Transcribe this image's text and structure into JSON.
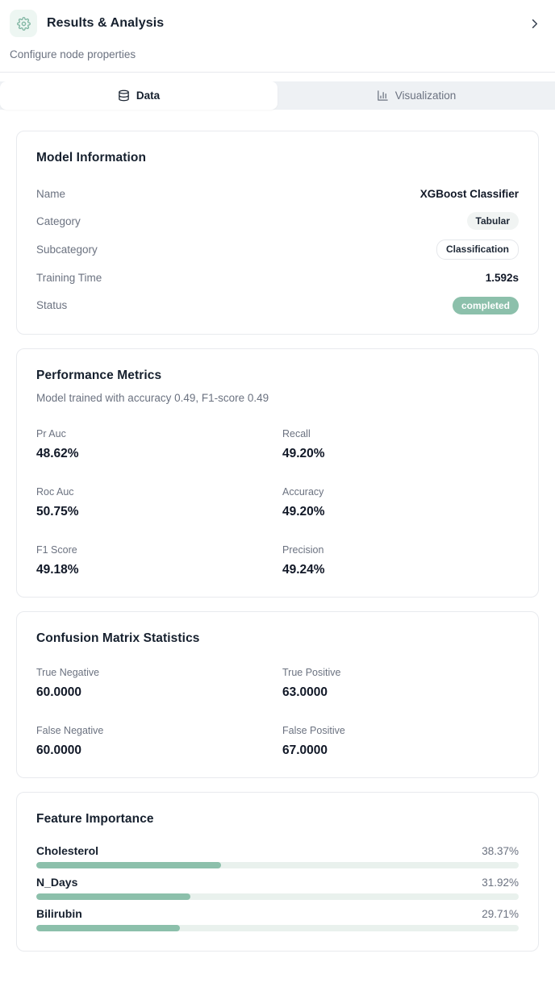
{
  "header": {
    "title": "Results & Analysis",
    "subtitle": "Configure node properties",
    "icons": [
      "gear-icon",
      "chevron-right-icon"
    ]
  },
  "tabs": [
    {
      "label": "Data",
      "icon": "database-icon",
      "active": true
    },
    {
      "label": "Visualization",
      "icon": "bar-chart-icon",
      "active": false
    }
  ],
  "model_info": {
    "title": "Model Information",
    "rows": [
      {
        "label": "Name",
        "value": "XGBoost Classifier",
        "type": "text"
      },
      {
        "label": "Category",
        "value": "Tabular",
        "type": "badge-gray"
      },
      {
        "label": "Subcategory",
        "value": "Classification",
        "type": "badge-outline"
      },
      {
        "label": "Training Time",
        "value": "1.592s",
        "type": "text"
      },
      {
        "label": "Status",
        "value": "completed",
        "type": "badge-teal"
      }
    ]
  },
  "performance": {
    "title": "Performance Metrics",
    "subtitle": "Model trained with accuracy 0.49, F1-score 0.49",
    "metrics": [
      {
        "label": "Pr Auc",
        "value": "48.62%"
      },
      {
        "label": "Recall",
        "value": "49.20%"
      },
      {
        "label": "Roc Auc",
        "value": "50.75%"
      },
      {
        "label": "Accuracy",
        "value": "49.20%"
      },
      {
        "label": "F1 Score",
        "value": "49.18%"
      },
      {
        "label": "Precision",
        "value": "49.24%"
      }
    ]
  },
  "confusion_matrix": {
    "title": "Confusion Matrix Statistics",
    "stats": [
      {
        "label": "True Negative",
        "value": "60.0000"
      },
      {
        "label": "True Positive",
        "value": "63.0000"
      },
      {
        "label": "False Negative",
        "value": "60.0000"
      },
      {
        "label": "False Positive",
        "value": "67.0000"
      }
    ]
  },
  "feature_importance": {
    "title": "Feature Importance",
    "features": [
      {
        "name": "Cholesterol",
        "percent_label": "38.37%",
        "percent": 38.37
      },
      {
        "name": "N_Days",
        "percent_label": "31.92%",
        "percent": 31.92
      },
      {
        "name": "Bilirubin",
        "percent_label": "29.71%",
        "percent": 29.71
      }
    ]
  },
  "colors": {
    "accent_teal": "#8cc0ab",
    "bar_track": "#e9f1ed",
    "icon_teal": "#84b8a5",
    "icon_bg": "#edf6f2",
    "tab_strip_bg": "#eef1f4"
  }
}
